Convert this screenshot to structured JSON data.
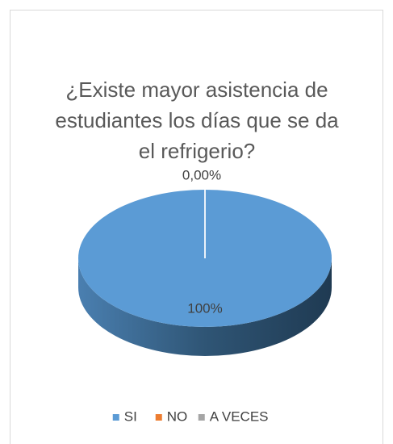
{
  "chart_data": {
    "type": "pie",
    "title": "¿Existe mayor asistencia de estudiantes los días que se da el refrigerio?",
    "categories": [
      "SI",
      "NO",
      "A VECES"
    ],
    "values": [
      100,
      0,
      0
    ],
    "value_labels": [
      "100%",
      "0,00%",
      null
    ],
    "colors": [
      "#5b9bd5",
      "#ed7d31",
      "#a5a5a5"
    ],
    "legend": "bottom"
  }
}
